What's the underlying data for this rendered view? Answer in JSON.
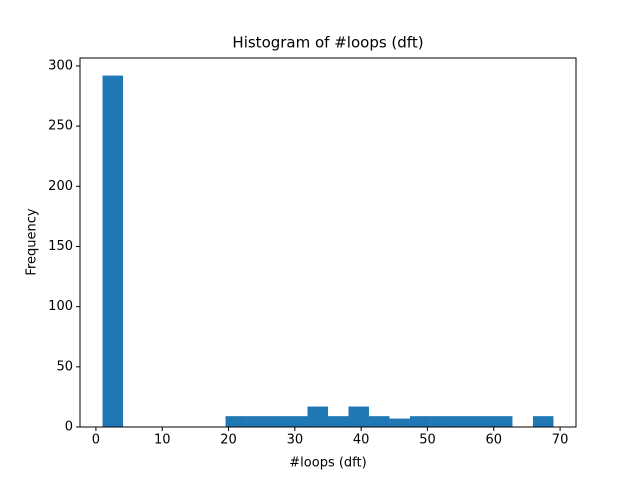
{
  "chart_data": {
    "type": "histogram",
    "title": "Histogram of #loops (dft)",
    "x_label": "#loops (dft)",
    "y_label": "Frequency",
    "bins": [
      1,
      4.09,
      7.18,
      10.27,
      13.36,
      16.45,
      19.55,
      22.64,
      25.73,
      28.82,
      31.91,
      35,
      38.09,
      41.18,
      44.27,
      47.36,
      50.45,
      53.55,
      56.64,
      59.73,
      62.82,
      65.91,
      69
    ],
    "values": [
      292,
      0,
      0,
      0,
      0,
      0,
      9,
      9,
      9,
      9,
      17,
      9,
      17,
      9,
      7,
      9,
      9,
      9,
      9,
      9,
      0,
      9
    ],
    "color": "#1f77b4",
    "xlim": [
      -2.4,
      72.4
    ],
    "xticks": [
      0,
      10,
      20,
      30,
      40,
      50,
      60,
      70
    ],
    "ylim": [
      0,
      306.6
    ],
    "yticks": [
      0,
      50,
      100,
      150,
      200,
      250,
      300
    ]
  }
}
